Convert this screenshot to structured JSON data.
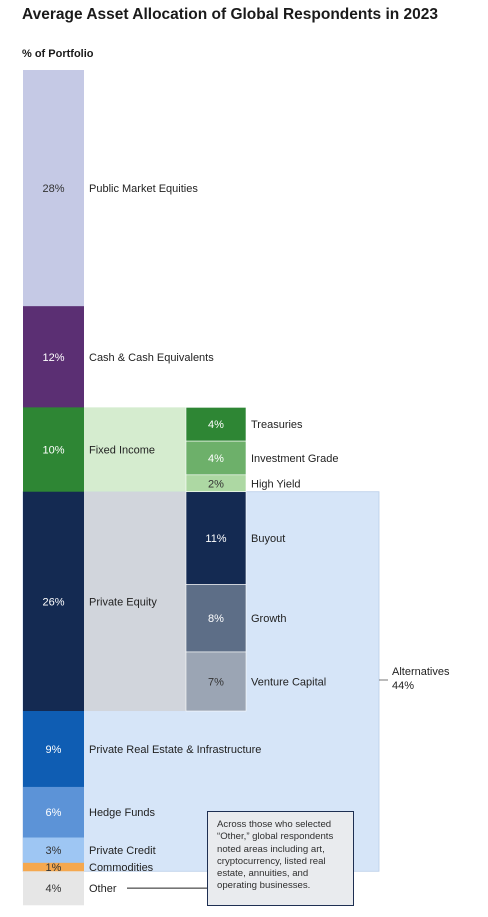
{
  "title": "Average Asset Allocation of Global Respondents in 2023",
  "ylabel": "% of Portfolio",
  "note": "Across those who selected “Other,” global respondents noted areas including art, cryptocurrency, listed real estate, annuities, and operating businesses.",
  "chart_data": {
    "type": "bar",
    "stacked": true,
    "unit": "% of Portfolio",
    "categories": [
      "Public Market Equities",
      "Cash & Cash Equivalents",
      "Fixed Income",
      "Private Equity",
      "Private Real Estate & Infrastructure",
      "Hedge Funds",
      "Private Credit",
      "Commodities",
      "Other"
    ],
    "values": [
      28,
      12,
      10,
      26,
      9,
      6,
      3,
      1,
      4
    ],
    "value_labels": [
      "28%",
      "12%",
      "10%",
      "26%",
      "9%",
      "6%",
      "3%",
      "1%",
      "4%"
    ],
    "colors": [
      "#c5c9e5",
      "#5b2f73",
      "#2e8634",
      "#142a52",
      "#0f5db3",
      "#5c93d7",
      "#9ec6f3",
      "#f5a84f",
      "#e6e6e6"
    ],
    "label_colors": [
      "#333333",
      "#ffffff",
      "#ffffff",
      "#ffffff",
      "#ffffff",
      "#ffffff",
      "#333333",
      "#333333",
      "#333333"
    ],
    "breakdowns": [
      {
        "parent": "Fixed Income",
        "band_color": "#d5eccf",
        "categories": [
          "Treasuries",
          "Investment Grade",
          "High Yield"
        ],
        "values": [
          4,
          4,
          2
        ],
        "value_labels": [
          "4%",
          "4%",
          "2%"
        ],
        "colors": [
          "#2e8634",
          "#6db06a",
          "#add8a3"
        ],
        "label_colors": [
          "#ffffff",
          "#ffffff",
          "#333333"
        ]
      },
      {
        "parent": "Private Equity",
        "band_color": "#d1d5dc",
        "categories": [
          "Buyout",
          "Growth",
          "Venture Capital"
        ],
        "values": [
          11,
          8,
          7
        ],
        "value_labels": [
          "11%",
          "8%",
          "7%"
        ],
        "colors": [
          "#142a52",
          "#5d6e87",
          "#9ba5b4"
        ],
        "label_colors": [
          "#ffffff",
          "#ffffff",
          "#333333"
        ]
      }
    ],
    "group": {
      "label": "Alternatives",
      "value": "44%",
      "members": [
        "Private Equity",
        "Private Real Estate & Infrastructure",
        "Hedge Funds",
        "Private Credit",
        "Commodities"
      ],
      "color": "#d6e5f8"
    },
    "ylim": [
      0,
      100
    ],
    "grid": false,
    "legend": "none"
  }
}
